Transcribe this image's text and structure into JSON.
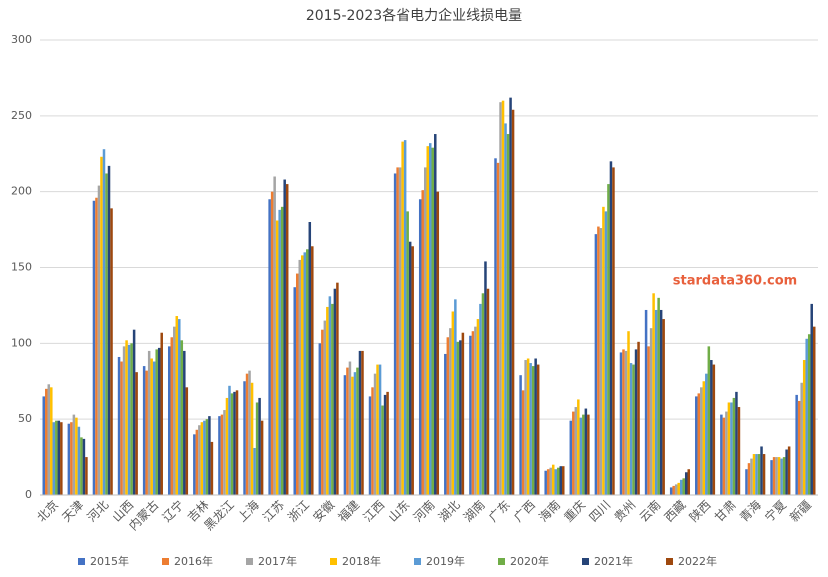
{
  "chart_data": {
    "type": "bar",
    "title": "2015-2023各省电力企业线损电量",
    "annotation": "stardata360.com",
    "categories": [
      "北京",
      "天津",
      "河北",
      "山西",
      "内蒙古",
      "辽宁",
      "吉林",
      "黑龙江",
      "上海",
      "江苏",
      "浙江",
      "安徽",
      "福建",
      "江西",
      "山东",
      "河南",
      "湖北",
      "湖南",
      "广东",
      "广西",
      "海南",
      "重庆",
      "四川",
      "贵州",
      "云南",
      "西藏",
      "陕西",
      "甘肃",
      "青海",
      "宁夏",
      "新疆"
    ],
    "series": [
      {
        "name": "2015年",
        "color": "#4472c4",
        "values": [
          65,
          47,
          194,
          91,
          85,
          98,
          40,
          52,
          75,
          195,
          137,
          100,
          79,
          65,
          212,
          195,
          93,
          105,
          222,
          79,
          16,
          49,
          172,
          94,
          122,
          5,
          65,
          53,
          17,
          23,
          66
        ]
      },
      {
        "name": "2016年",
        "color": "#ed7d31",
        "values": [
          70,
          48,
          196,
          88,
          82,
          104,
          43,
          53,
          80,
          200,
          146,
          109,
          84,
          71,
          216,
          201,
          104,
          108,
          219,
          69,
          17,
          55,
          177,
          96,
          98,
          6,
          67,
          51,
          21,
          25,
          62
        ]
      },
      {
        "name": "2017年",
        "color": "#a5a5a5",
        "values": [
          73,
          53,
          204,
          98,
          95,
          111,
          46,
          56,
          82,
          210,
          155,
          115,
          88,
          80,
          216,
          216,
          110,
          111,
          259,
          89,
          18,
          58,
          176,
          95,
          110,
          7,
          71,
          55,
          24,
          25,
          74
        ]
      },
      {
        "name": "2018年",
        "color": "#ffc000",
        "values": [
          71,
          51,
          223,
          102,
          90,
          118,
          48,
          64,
          74,
          181,
          158,
          124,
          78,
          86,
          233,
          230,
          121,
          116,
          260,
          90,
          20,
          63,
          190,
          108,
          133,
          8,
          75,
          61,
          27,
          25,
          89
        ]
      },
      {
        "name": "2019年",
        "color": "#5b9bd5",
        "values": [
          48,
          45,
          228,
          99,
          88,
          116,
          49,
          72,
          31,
          188,
          160,
          131,
          81,
          86,
          234,
          232,
          129,
          126,
          245,
          87,
          17,
          51,
          187,
          87,
          122,
          10,
          80,
          61,
          27,
          24,
          103
        ]
      },
      {
        "name": "2020年",
        "color": "#70ad47",
        "values": [
          49,
          38,
          212,
          100,
          96,
          102,
          50,
          67,
          61,
          190,
          162,
          126,
          84,
          59,
          187,
          229,
          101,
          133,
          238,
          85,
          18,
          53,
          205,
          86,
          130,
          11,
          98,
          64,
          27,
          25,
          106
        ]
      },
      {
        "name": "2021年",
        "color": "#264478",
        "values": [
          49,
          37,
          217,
          109,
          97,
          95,
          52,
          68,
          64,
          208,
          180,
          136,
          95,
          66,
          167,
          238,
          102,
          154,
          262,
          90,
          19,
          57,
          220,
          96,
          122,
          15,
          89,
          68,
          32,
          30,
          126
        ]
      },
      {
        "name": "2022年",
        "color": "#9e480e",
        "values": [
          48,
          25,
          189,
          81,
          107,
          71,
          35,
          69,
          49,
          205,
          164,
          140,
          95,
          68,
          164,
          200,
          107,
          136,
          254,
          86,
          19,
          53,
          216,
          101,
          116,
          17,
          86,
          58,
          27,
          32,
          111
        ]
      }
    ],
    "ylim": [
      0,
      300
    ],
    "yticks": [
      0,
      50,
      100,
      150,
      200,
      250,
      300
    ],
    "grid": true
  }
}
